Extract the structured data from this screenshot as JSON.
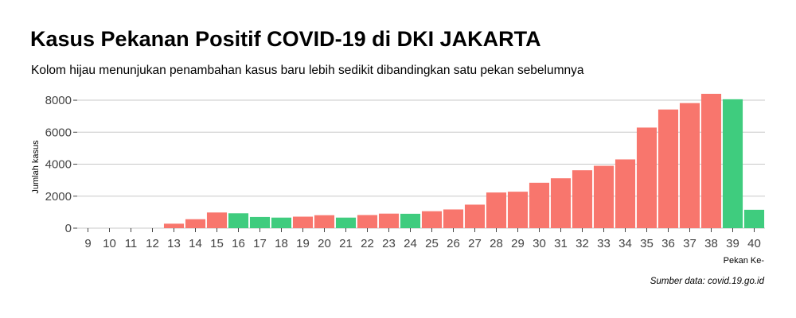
{
  "title": "Kasus Pekanan Positif COVID-19 di DKI JAKARTA",
  "subtitle": "Kolom hijau menunjukan penambahan kasus baru lebih sedikit dibandingkan satu pekan sebelumnya",
  "caption": "Sumber data: covid.19.go.id",
  "colors": {
    "increase": "#F8766D",
    "decrease": "#3FCC7E",
    "grid": "#C8C8C8"
  },
  "chart_data": {
    "type": "bar",
    "title": "Kasus Pekanan Positif COVID-19 di DKI JAKARTA",
    "subtitle": "Kolom hijau menunjukan penambahan kasus baru lebih sedikit dibandingkan satu pekan sebelumnya",
    "xlabel": "Pekan Ke-",
    "ylabel": "Jumlah kasus",
    "ylim": [
      0,
      8400
    ],
    "yticks": [
      0,
      2000,
      4000,
      6000,
      8000
    ],
    "ytick_labels": [
      "0",
      "2000",
      "4000",
      "6000",
      "8000"
    ],
    "grid": true,
    "legend": "none",
    "categories": [
      "9",
      "10",
      "11",
      "12",
      "13",
      "14",
      "15",
      "16",
      "17",
      "18",
      "19",
      "20",
      "21",
      "22",
      "23",
      "24",
      "25",
      "26",
      "27",
      "28",
      "29",
      "30",
      "31",
      "32",
      "33",
      "34",
      "35",
      "36",
      "37",
      "38",
      "39",
      "40"
    ],
    "values": [
      0,
      0,
      0,
      0,
      280,
      560,
      980,
      930,
      700,
      660,
      720,
      810,
      660,
      820,
      910,
      900,
      1060,
      1170,
      1470,
      2230,
      2280,
      2840,
      3120,
      3620,
      3900,
      4300,
      6290,
      7420,
      7820,
      8400,
      8060,
      1150
    ],
    "fewer_than_previous_week": [
      false,
      false,
      false,
      false,
      false,
      false,
      false,
      true,
      true,
      true,
      false,
      false,
      true,
      false,
      false,
      true,
      false,
      false,
      false,
      false,
      false,
      false,
      false,
      false,
      false,
      false,
      false,
      false,
      false,
      false,
      true,
      true
    ]
  }
}
